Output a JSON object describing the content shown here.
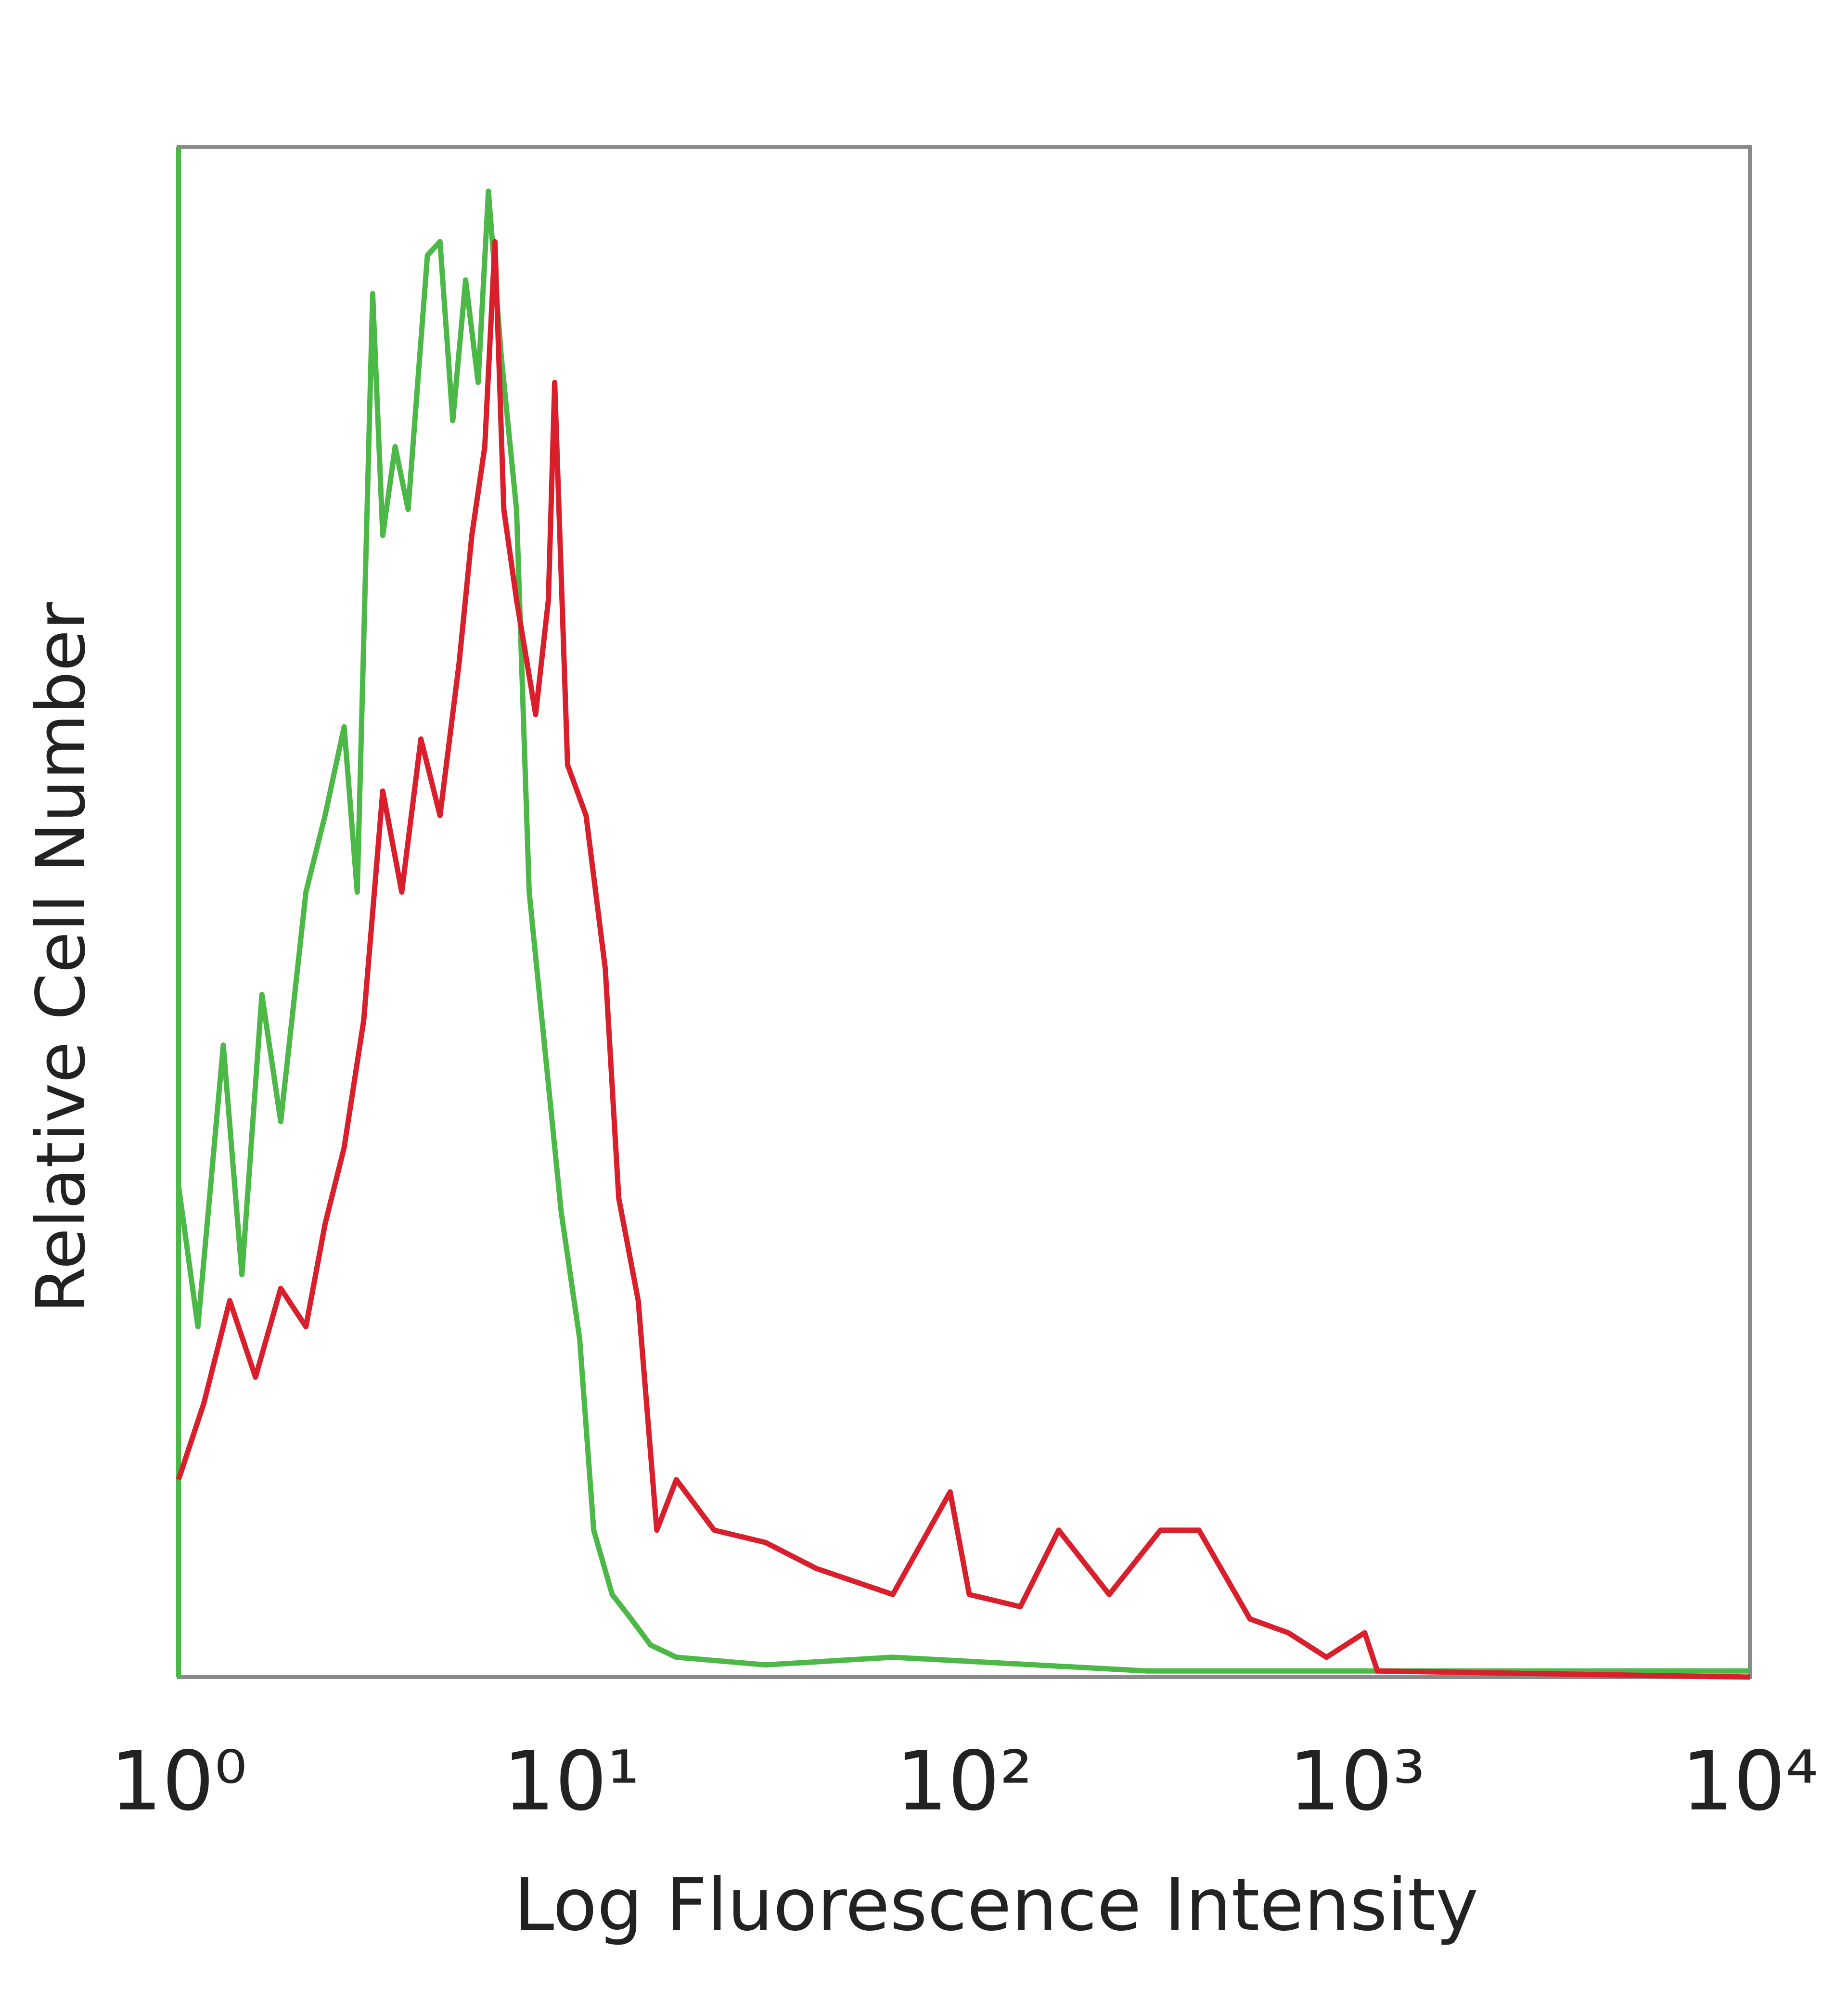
{
  "chart_data": {
    "type": "line",
    "x_label": "Log Fluorescence Intensity",
    "y_label": "Relative Cell Number",
    "x_log": true,
    "xlim": [
      1,
      10000
    ],
    "xticks": [
      {
        "value": 1,
        "label": "10⁰"
      },
      {
        "value": 10,
        "label": "10¹"
      },
      {
        "value": 100,
        "label": "10²"
      },
      {
        "value": 1000,
        "label": "10³"
      },
      {
        "value": 10000,
        "label": "10⁴"
      }
    ],
    "ylim": [
      0,
      100
    ],
    "series": [
      {
        "color": "#4cb848",
        "x": [
          1.0,
          1.12,
          1.3,
          1.45,
          1.63,
          1.82,
          2.11,
          2.36,
          2.64,
          2.85,
          3.12,
          3.31,
          3.56,
          3.84,
          4.3,
          4.63,
          4.99,
          5.38,
          5.79,
          6.15,
          6.63,
          7.25,
          7.81,
          8.42,
          9.42,
          10.5,
          11.4,
          12.7,
          14.2,
          15.9,
          18.5,
          31.2,
          65.8,
          293,
          10000
        ],
        "values": [
          32.1,
          22.9,
          41.3,
          26.3,
          44.6,
          36.3,
          51.3,
          56.3,
          62.1,
          51.3,
          90.4,
          74.6,
          80.4,
          76.3,
          92.9,
          93.8,
          82.1,
          91.3,
          84.6,
          97.1,
          86.3,
          76.3,
          51.3,
          42.9,
          30.4,
          22.1,
          9.6,
          5.4,
          3.8,
          2.1,
          1.3,
          0.8,
          1.3,
          0.4,
          0.4
        ]
      },
      {
        "color": "#d91f2b",
        "x": [
          1.0,
          1.16,
          1.35,
          1.57,
          1.82,
          2.11,
          2.36,
          2.64,
          2.96,
          3.31,
          3.7,
          4.14,
          4.63,
          5.18,
          5.58,
          6.02,
          6.39,
          6.73,
          7.25,
          8.11,
          8.74,
          9.07,
          9.78,
          10.9,
          12.2,
          13.2,
          14.8,
          16.5,
          18.5,
          23.1,
          31.2,
          42.0,
          65.8,
          92.1,
          103,
          139,
          174,
          234,
          316,
          396,
          534,
          668,
          836,
          1046,
          1127,
          10000
        ],
        "values": [
          12.9,
          17.9,
          24.6,
          19.6,
          25.4,
          22.9,
          29.6,
          34.6,
          42.9,
          57.9,
          51.3,
          61.3,
          56.3,
          66.3,
          74.6,
          80.4,
          93.8,
          76.3,
          70.4,
          62.9,
          70.4,
          84.6,
          59.6,
          56.3,
          46.3,
          31.3,
          24.6,
          9.6,
          12.9,
          9.6,
          8.8,
          7.1,
          5.4,
          12.1,
          5.4,
          4.6,
          9.6,
          5.4,
          9.6,
          9.6,
          3.8,
          2.9,
          1.3,
          2.9,
          0.4,
          0
        ]
      }
    ]
  }
}
